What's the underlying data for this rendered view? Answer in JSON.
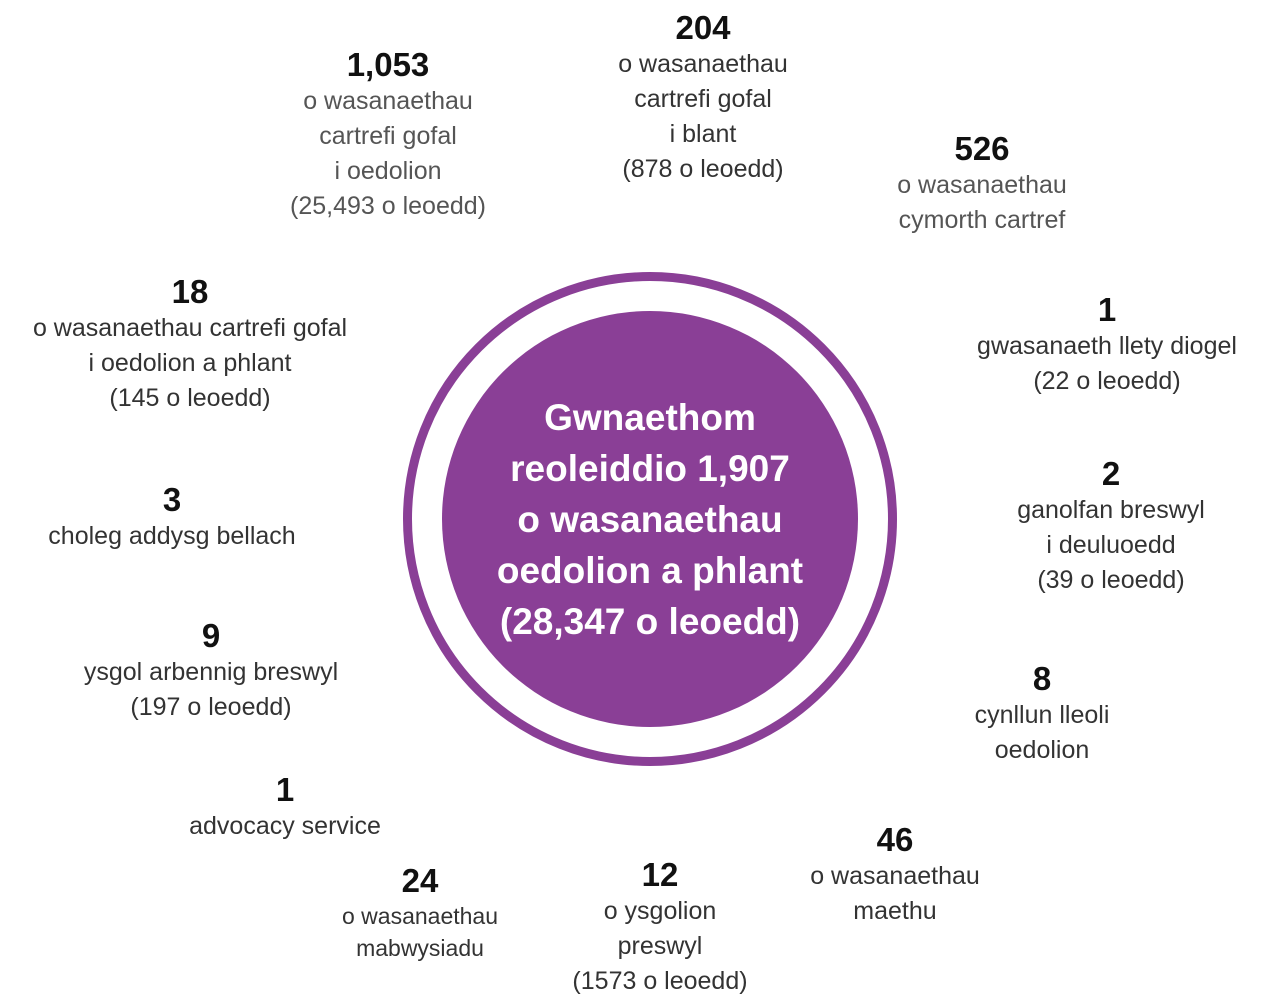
{
  "center": {
    "lines": [
      "Gwnaethom",
      "reoleiddio 1,907",
      "o wasanaethau",
      "oedolion a phlant",
      "(28,347 o leoedd)"
    ]
  },
  "stats": {
    "adult_care_homes": {
      "number": "1,053",
      "lines": [
        "o wasanaethau",
        "cartrefi gofal",
        "i oedolion",
        "(25,493 o leoedd)"
      ]
    },
    "children_care_homes": {
      "number": "204",
      "lines": [
        "o wasanaethau",
        "cartrefi gofal",
        "i blant",
        "(878 o leoedd)"
      ]
    },
    "domiciliary": {
      "number": "526",
      "lines": [
        "o wasanaethau",
        "cymorth cartref"
      ]
    },
    "adults_and_children_homes": {
      "number": "18",
      "lines": [
        "o wasanaethau cartrefi gofal",
        "i oedolion a phlant",
        "(145 o leoedd)"
      ]
    },
    "secure_accommodation": {
      "number": "1",
      "lines": [
        "gwasanaeth llety diogel",
        "(22 o leoedd)"
      ]
    },
    "fe_colleges": {
      "number": "3",
      "lines": [
        "choleg addysg bellach"
      ]
    },
    "family_centres": {
      "number": "2",
      "lines": [
        "ganolfan breswyl",
        "i deuluoedd",
        "(39 o leoedd)"
      ]
    },
    "residential_special_schools": {
      "number": "9",
      "lines": [
        "ysgol arbennig breswyl",
        "(197 o leoedd)"
      ]
    },
    "adult_placement": {
      "number": "8",
      "lines": [
        "cynllun lleoli",
        "oedolion"
      ]
    },
    "advocacy": {
      "number": "1",
      "lines": [
        "advocacy service"
      ]
    },
    "fostering": {
      "number": "46",
      "lines": [
        "o wasanaethau",
        "maethu"
      ]
    },
    "adoption": {
      "number": "24",
      "lines": [
        "o wasanaethau",
        "mabwysiadu"
      ]
    },
    "boarding_schools": {
      "number": "12",
      "lines": [
        "o ysgolion",
        "preswyl",
        "(1573 o leoedd)"
      ]
    }
  },
  "colors": {
    "accent_purple": "#8a3f96",
    "text_dark": "#111111"
  }
}
